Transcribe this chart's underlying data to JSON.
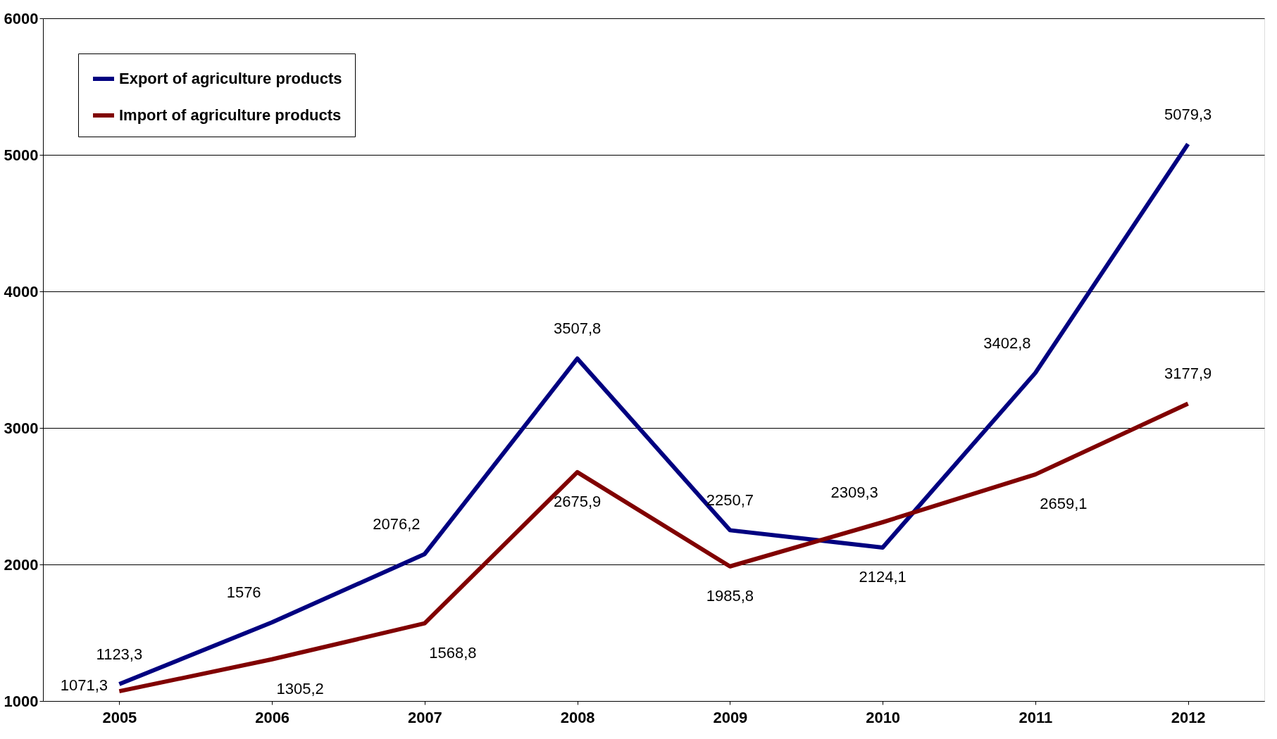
{
  "chart_data": {
    "type": "line",
    "categories": [
      "2005",
      "2006",
      "2007",
      "2008",
      "2009",
      "2010",
      "2011",
      "2012"
    ],
    "series": [
      {
        "name": "Export of agriculture products",
        "color": "#000080",
        "values": [
          1123.3,
          1576,
          2076.2,
          3507.8,
          2250.7,
          2124.1,
          3402.8,
          5079.3
        ],
        "value_labels": [
          "1123,3",
          "1576",
          "2076,2",
          "3507,8",
          "2250,7",
          "2124,1",
          "3402,8",
          "5079,3"
        ]
      },
      {
        "name": "Import of agriculture products",
        "color": "#800000",
        "values": [
          1071.3,
          1305.2,
          1568.8,
          2675.9,
          1985.8,
          2309.3,
          2659.1,
          3177.9
        ],
        "value_labels": [
          "1071,3",
          "1305,2",
          "1568,8",
          "2675,9",
          "1985,8",
          "2309,3",
          "2659,1",
          "3177,9"
        ]
      }
    ],
    "ylim": [
      1000,
      6000
    ],
    "yticks": [
      1000,
      2000,
      3000,
      4000,
      5000,
      6000
    ],
    "grid": "y",
    "legend": "top left",
    "marker": "none",
    "line_style": "solid"
  }
}
